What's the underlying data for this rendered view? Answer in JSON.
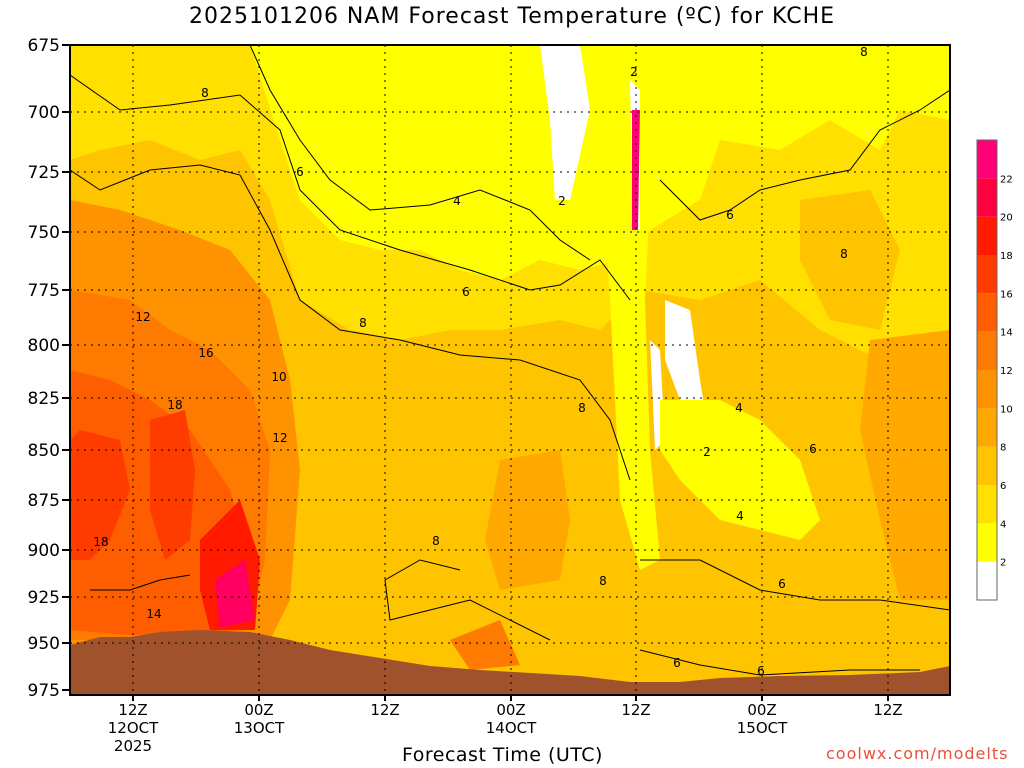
{
  "chart_data": {
    "type": "heatmap",
    "title": "2025101206 NAM Forecast Temperature (ºC) for KCHE",
    "xlabel": "Forecast Time (UTC)",
    "ylabel": "",
    "y_ticks": [
      "675",
      "700",
      "725",
      "750",
      "775",
      "800",
      "825",
      "850",
      "875",
      "900",
      "925",
      "950",
      "975"
    ],
    "x_ticks": [
      {
        "hour": "12Z",
        "date": "12OCT",
        "year": "2025"
      },
      {
        "hour": "00Z",
        "date": "13OCT",
        "year": ""
      },
      {
        "hour": "12Z",
        "date": "",
        "year": ""
      },
      {
        "hour": "00Z",
        "date": "14OCT",
        "year": ""
      },
      {
        "hour": "12Z",
        "date": "",
        "year": ""
      },
      {
        "hour": "00Z",
        "date": "15OCT",
        "year": ""
      },
      {
        "hour": "12Z",
        "date": "",
        "year": ""
      }
    ],
    "colorbar": {
      "labels": [
        "2",
        "4",
        "6",
        "8",
        "10",
        "12",
        "14",
        "16",
        "18",
        "20",
        "22"
      ],
      "colors": [
        "#ffffff",
        "#ffff00",
        "#ffe000",
        "#ffc400",
        "#ffa800",
        "#ff9200",
        "#ff7a00",
        "#ff5e00",
        "#ff3c00",
        "#ff1a00",
        "#ff0040",
        "#ff0078"
      ]
    },
    "contour_labels": [
      "8",
      "6",
      "4",
      "2",
      "2",
      "6",
      "8",
      "6",
      "12",
      "8",
      "16",
      "10",
      "8",
      "18",
      "12",
      "4",
      "6",
      "2",
      "8",
      "8",
      "4",
      "18",
      "8",
      "6",
      "14",
      "6",
      "6"
    ],
    "grid": true
  },
  "credit": "coolwx.com/modelts"
}
